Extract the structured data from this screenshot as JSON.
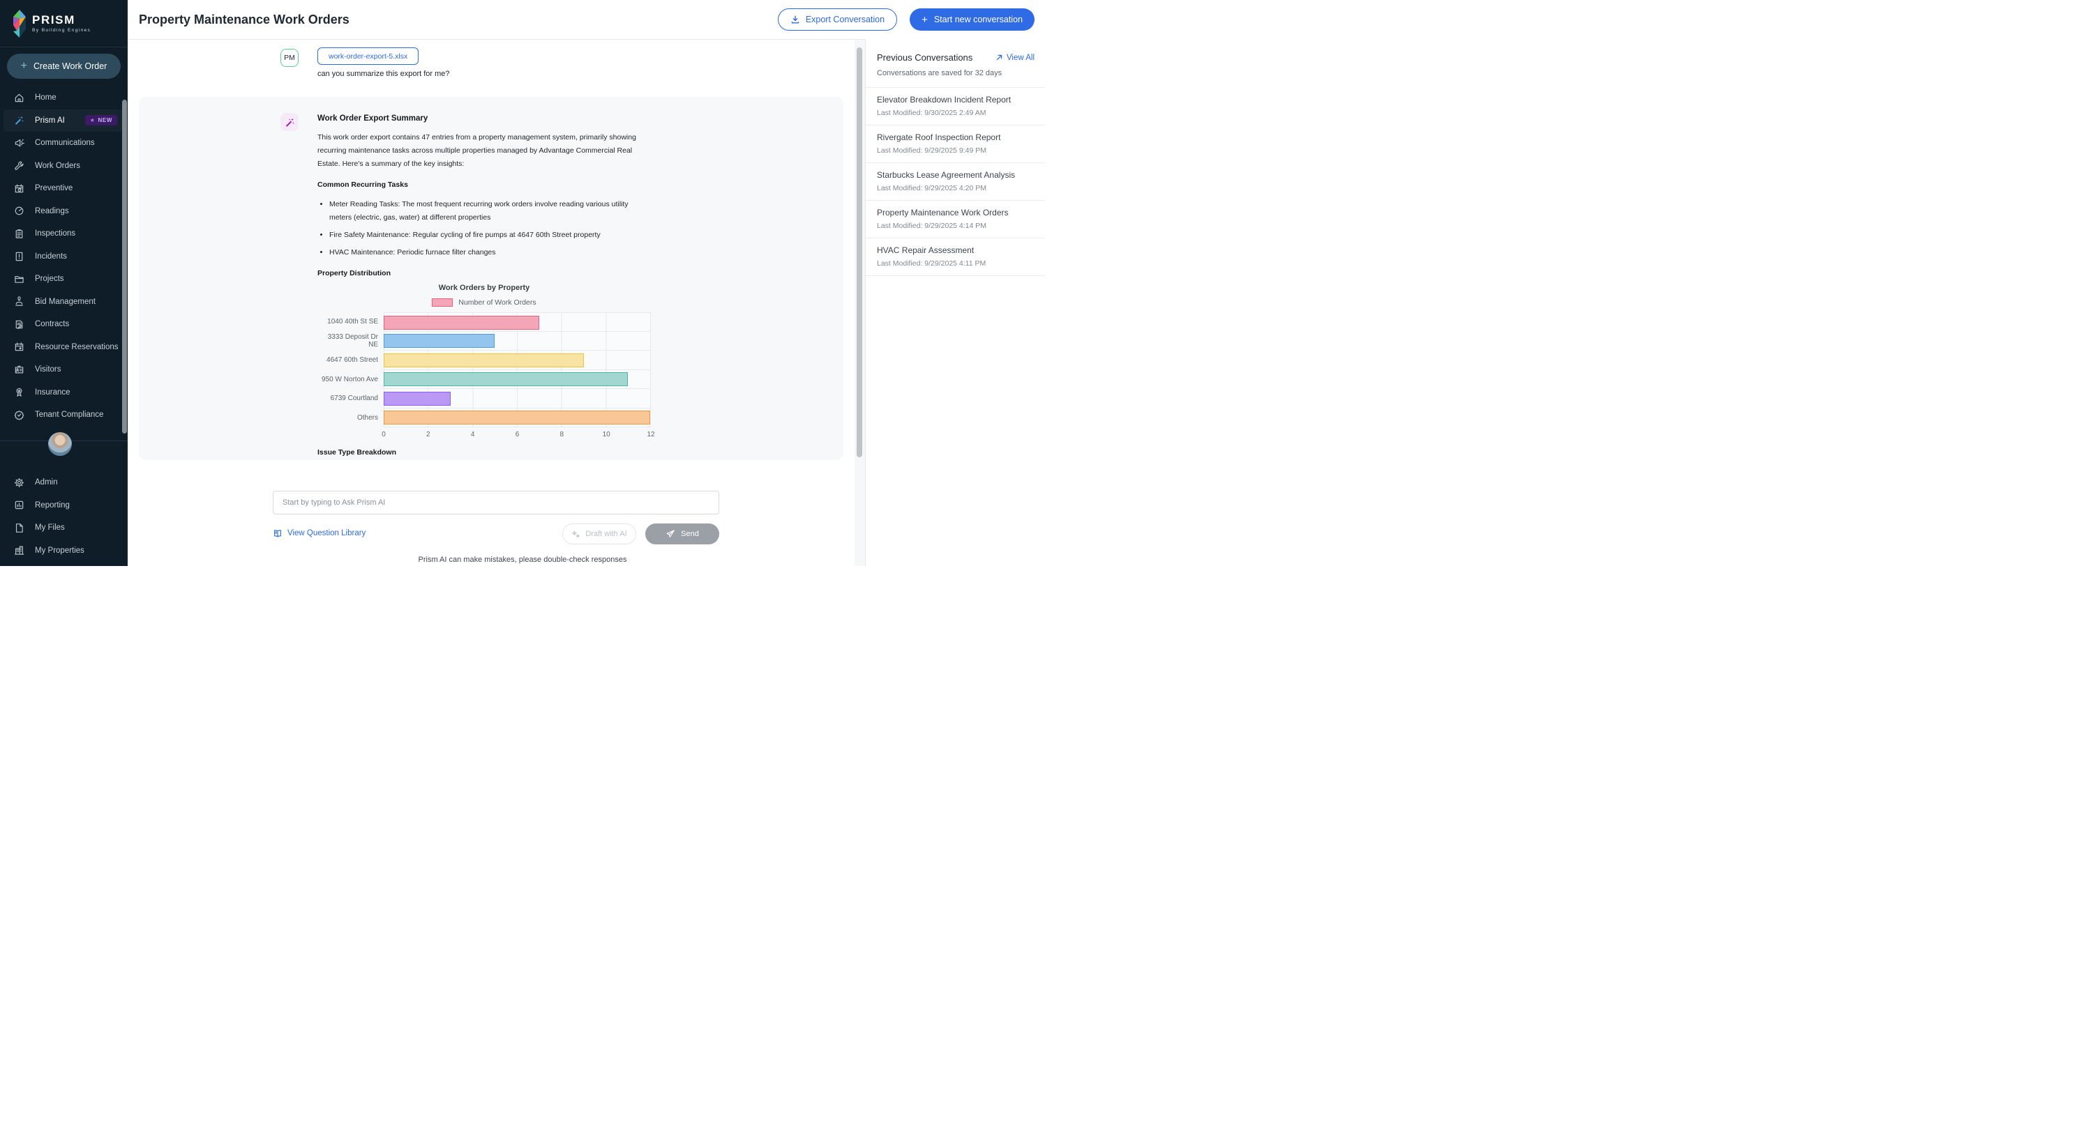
{
  "app": {
    "logo_title": "PRISM",
    "logo_subtitle": "By Building Engines"
  },
  "sidebar": {
    "create_button": "Create Work Order",
    "nav": [
      {
        "label": "Home"
      },
      {
        "label": "Prism AI",
        "badge": "NEW"
      },
      {
        "label": "Communications"
      },
      {
        "label": "Work Orders"
      },
      {
        "label": "Preventive"
      },
      {
        "label": "Readings"
      },
      {
        "label": "Inspections"
      },
      {
        "label": "Incidents"
      },
      {
        "label": "Projects"
      },
      {
        "label": "Bid Management"
      },
      {
        "label": "Contracts"
      },
      {
        "label": "Resource Reservations"
      },
      {
        "label": "Visitors"
      },
      {
        "label": "Insurance"
      },
      {
        "label": "Tenant Compliance"
      }
    ],
    "bottom_nav": [
      {
        "label": "Admin"
      },
      {
        "label": "Reporting"
      },
      {
        "label": "My Files"
      },
      {
        "label": "My Properties"
      }
    ]
  },
  "header": {
    "title": "Property Maintenance Work Orders",
    "export_button": "Export Conversation",
    "new_conversation_button": "Start new conversation"
  },
  "chat": {
    "user_initials": "PM",
    "attachment_name": "work-order-export-5.xlsx",
    "question": "can you summarize this export for me?",
    "response": {
      "title": "Work Order Export Summary",
      "intro": "This work order export contains 47 entries from a property management system, primarily showing recurring maintenance tasks across multiple properties managed by Advantage Commercial Real Estate. Here's a summary of the key insights:",
      "section_tasks": "Common Recurring Tasks",
      "bullets": [
        "Meter Reading Tasks: The most frequent recurring work orders involve reading various utility meters (electric, gas, water) at different properties",
        "Fire Safety Maintenance: Regular cycling of fire pumps at 4647 60th Street property",
        "HVAC Maintenance: Periodic furnace filter changes"
      ],
      "section_distribution": "Property Distribution",
      "section_issue": "Issue Type Breakdown"
    }
  },
  "chart_data": {
    "type": "bar",
    "orientation": "horizontal",
    "title": "Work Orders by Property",
    "legend": [
      "Number of Work Orders"
    ],
    "legend_position": "top",
    "categories": [
      "1040 40th St SE",
      "3333 Deposit Dr NE",
      "4647 60th Street",
      "950 W Norton Ave",
      "6739 Courtland",
      "Others"
    ],
    "values": [
      7,
      5,
      9,
      11,
      3,
      12
    ],
    "xlabel": "",
    "ylabel": "",
    "xlim": [
      0,
      12
    ],
    "xticks": [
      0,
      2,
      4,
      6,
      8,
      10,
      12
    ],
    "grid": true,
    "colors": [
      {
        "fill": "#f5a6b6",
        "border": "#e8617d"
      },
      {
        "fill": "#93c5ef",
        "border": "#4e9edd"
      },
      {
        "fill": "#f8e3a2",
        "border": "#edc241"
      },
      {
        "fill": "#a2d6d0",
        "border": "#4fb3a6"
      },
      {
        "fill": "#bb9af5",
        "border": "#8b5cf6"
      },
      {
        "fill": "#f8c795",
        "border": "#ee9a45"
      }
    ]
  },
  "composer": {
    "placeholder": "Start by typing to Ask Prism AI",
    "question_library": "View Question Library",
    "draft_button": "Draft with AI",
    "send_button": "Send",
    "disclaimer": "Prism AI can make mistakes, please double-check responses"
  },
  "conversations": {
    "title": "Previous Conversations",
    "view_all": "View All",
    "note": "Conversations are saved for 32 days",
    "items": [
      {
        "title": "Elevator Breakdown Incident Report",
        "modified": "Last Modified: 9/30/2025 2:49 AM"
      },
      {
        "title": "Rivergate Roof Inspection Report",
        "modified": "Last Modified: 9/29/2025 9:49 PM"
      },
      {
        "title": "Starbucks Lease Agreement Analysis",
        "modified": "Last Modified: 9/29/2025 4:20 PM"
      },
      {
        "title": "Property Maintenance Work Orders",
        "modified": "Last Modified: 9/29/2025 4:14 PM"
      },
      {
        "title": "HVAC Repair Assessment",
        "modified": "Last Modified: 9/29/2025 4:11 PM"
      }
    ]
  }
}
